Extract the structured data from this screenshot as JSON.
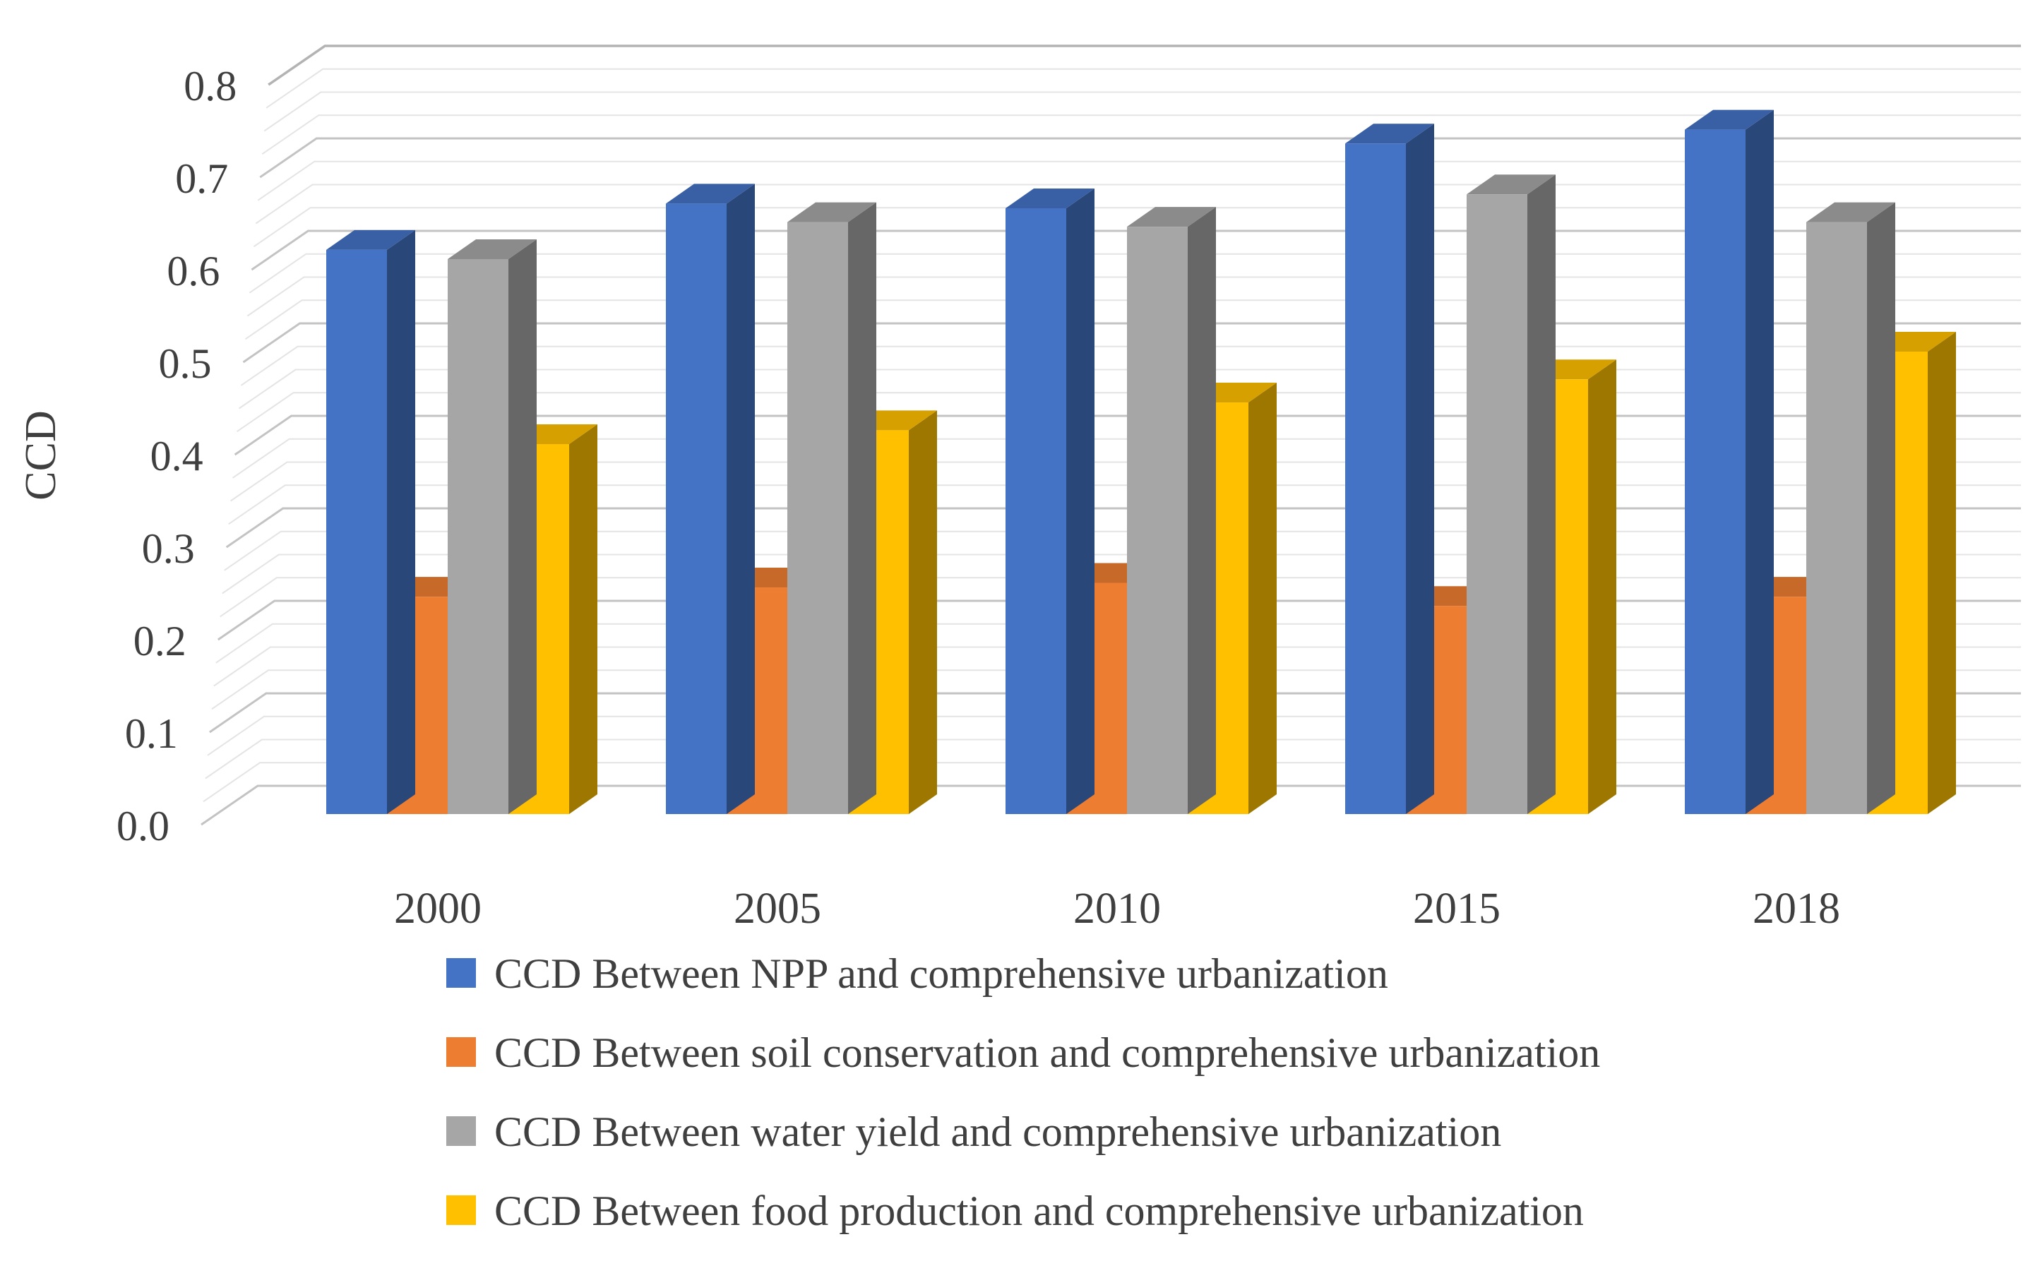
{
  "figure": {
    "kind": "3d-clustered-column-chart",
    "background_color": "#FFFFFF",
    "text_color": "#3F3F3F",
    "gridline_major_color": "#C3C3C3",
    "gridline_minor_color": "#E4E4E4"
  },
  "y_axis": {
    "title": "CCD",
    "min": 0.0,
    "max": 0.8,
    "major_unit": 0.1,
    "minor_unit": 0.025,
    "tick_labels": [
      "0.0",
      "0.1",
      "0.2",
      "0.3",
      "0.4",
      "0.5",
      "0.6",
      "0.7",
      "0.8"
    ]
  },
  "x_axis": {
    "categories": [
      "2000",
      "2005",
      "2010",
      "2015",
      "2018"
    ]
  },
  "legend": {
    "position": "bottom",
    "items": [
      {
        "label": "CCD Between NPP and comprehensive urbanization",
        "color": "#4472C4"
      },
      {
        "label": "CCD Between soil conservation and comprehensive urbanization",
        "color": "#ED7D31"
      },
      {
        "label": "CCD Between water yield and comprehensive urbanization",
        "color": "#A6A6A6"
      },
      {
        "label": "CCD Between food production and comprehensive urbanization",
        "color": "#FFC000"
      }
    ]
  },
  "chart_data": {
    "type": "bar",
    "subtype": "3d-clustered-column",
    "title": "",
    "xlabel": "",
    "ylabel": "CCD",
    "ylim": [
      0.0,
      0.8
    ],
    "grid": true,
    "legend_position": "bottom",
    "categories": [
      "2000",
      "2005",
      "2010",
      "2015",
      "2018"
    ],
    "series": [
      {
        "name": "CCD Between NPP and comprehensive urbanization",
        "color": "#4472C4",
        "values": [
          0.61,
          0.66,
          0.655,
          0.725,
          0.74
        ]
      },
      {
        "name": "CCD Between soil conservation and comprehensive urbanization",
        "color": "#ED7D31",
        "values": [
          0.235,
          0.245,
          0.25,
          0.225,
          0.235
        ]
      },
      {
        "name": "CCD Between water yield and comprehensive urbanization",
        "color": "#A6A6A6",
        "values": [
          0.6,
          0.64,
          0.635,
          0.67,
          0.64
        ]
      },
      {
        "name": "CCD Between food production and comprehensive urbanization",
        "color": "#FFC000",
        "values": [
          0.4,
          0.415,
          0.445,
          0.47,
          0.5
        ]
      }
    ]
  }
}
